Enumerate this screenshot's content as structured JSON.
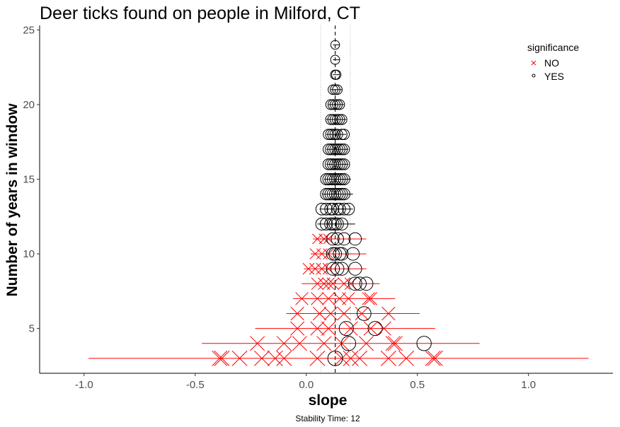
{
  "chart_data": {
    "type": "scatter",
    "title": "Deer ticks found on people in Milford, CT",
    "xlabel": "slope",
    "ylabel": "Number of years in window",
    "caption": "Stability Time: 12",
    "xlim": [
      -1.2,
      1.38
    ],
    "ylim": [
      2.0,
      25.3
    ],
    "xticks": [
      -1.0,
      -0.5,
      0.0,
      0.5,
      1.0
    ],
    "xtick_labels": [
      "-1.0",
      "-0.5",
      "0.0",
      "0.5",
      "1.0"
    ],
    "yticks": [
      5,
      10,
      15,
      20,
      25
    ],
    "ytick_labels": [
      "5",
      "10",
      "15",
      "20",
      "25"
    ],
    "grid": false,
    "legend": {
      "title": "significance",
      "position": "top-right",
      "entries": [
        {
          "label": "NO",
          "marker": "x",
          "color": "#ff0000"
        },
        {
          "label": "YES",
          "marker": "circle",
          "color": "#000000"
        }
      ]
    },
    "reference_lines": {
      "dashed_vertical_x": 0.13,
      "dotted_vertical_x": [
        0.065,
        0.198
      ]
    },
    "colors": {
      "NO": "#ff0000",
      "YES": "#000000"
    },
    "rows": [
      {
        "window": 3,
        "ci": [
          -0.98,
          1.27
        ],
        "no": [
          -0.39,
          -0.38,
          -0.3,
          -0.2,
          -0.14,
          -0.1,
          0.05,
          0.16,
          0.2,
          0.24,
          0.37,
          0.45,
          0.57,
          0.58
        ],
        "yes": [
          0.13
        ],
        "ci_sig": false
      },
      {
        "window": 4,
        "ci": [
          -0.47,
          0.78
        ],
        "no": [
          -0.22,
          -0.1,
          -0.03,
          0.08,
          0.16,
          0.27,
          0.39,
          0.4
        ],
        "yes": [
          0.19,
          0.53
        ],
        "ci_sig": false
      },
      {
        "window": 5,
        "ci": [
          -0.23,
          0.58
        ],
        "no": [
          -0.04,
          0.05,
          0.1,
          0.2,
          0.29,
          0.35
        ],
        "yes": [
          0.18,
          0.31
        ],
        "ci_sig": false
      },
      {
        "window": 6,
        "ci": [
          -0.09,
          0.51
        ],
        "no": [
          -0.04,
          0.06,
          0.11,
          0.17,
          0.25,
          0.37
        ],
        "yes": [
          0.26
        ],
        "ci_sig": false
      },
      {
        "window": 7,
        "ci": [
          -0.06,
          0.4
        ],
        "no": [
          -0.02,
          0.05,
          0.1,
          0.15,
          0.19,
          0.28,
          0.29
        ],
        "yes": [],
        "ci_sig": false
      },
      {
        "window": 8,
        "ci": [
          -0.02,
          0.33
        ],
        "no": [
          0.05,
          0.08,
          0.1,
          0.12,
          0.17,
          0.2
        ],
        "yes": [
          0.22,
          0.24,
          0.27
        ],
        "ci_sig": false
      },
      {
        "window": 9,
        "ci": [
          -0.01,
          0.27
        ],
        "no": [
          0.01,
          0.04,
          0.07,
          0.1
        ],
        "yes": [
          0.12,
          0.14,
          0.16,
          0.22
        ],
        "ci_sig": false
      },
      {
        "window": 10,
        "ci": [
          0.02,
          0.27
        ],
        "no": [
          0.04,
          0.07,
          0.1
        ],
        "yes": [
          0.12,
          0.13,
          0.15,
          0.16,
          0.21
        ],
        "ci_sig": false
      },
      {
        "window": 11,
        "ci": [
          0.03,
          0.27
        ],
        "no": [
          0.05,
          0.08,
          0.1
        ],
        "yes": [
          0.12,
          0.14,
          0.17,
          0.22
        ],
        "ci_sig": false
      },
      {
        "window": 12,
        "ci": [
          0.05,
          0.22
        ],
        "no": [],
        "yes": [
          0.07,
          0.09,
          0.11,
          0.12,
          0.13,
          0.14,
          0.16
        ],
        "ci_sig": true
      },
      {
        "window": 13,
        "ci": [
          0.06,
          0.21
        ],
        "no": [],
        "yes": [
          0.07,
          0.09,
          0.11,
          0.12,
          0.14,
          0.15,
          0.17,
          0.19
        ],
        "ci_sig": true
      },
      {
        "window": 14,
        "ci": [
          0.07,
          0.21
        ],
        "no": [],
        "yes": [
          0.09,
          0.1,
          0.11,
          0.12,
          0.13,
          0.14,
          0.15,
          0.16,
          0.17
        ],
        "ci_sig": true
      },
      {
        "window": 15,
        "ci": [
          0.08,
          0.2
        ],
        "no": [],
        "yes": [
          0.09,
          0.1,
          0.11,
          0.12,
          0.13,
          0.14,
          0.15,
          0.16,
          0.17
        ],
        "ci_sig": true
      },
      {
        "window": 16,
        "ci": [
          0.09,
          0.19
        ],
        "no": [],
        "yes": [
          0.1,
          0.11,
          0.12,
          0.13,
          0.14,
          0.15,
          0.16,
          0.17
        ],
        "ci_sig": true
      },
      {
        "window": 17,
        "ci": [
          0.09,
          0.19
        ],
        "no": [],
        "yes": [
          0.1,
          0.11,
          0.12,
          0.13,
          0.14,
          0.15,
          0.16,
          0.17
        ],
        "ci_sig": true
      },
      {
        "window": 18,
        "ci": [
          0.09,
          0.18
        ],
        "no": [],
        "yes": [
          0.1,
          0.11,
          0.12,
          0.13,
          0.14,
          0.16,
          0.17
        ],
        "ci_sig": true
      },
      {
        "window": 19,
        "ci": [
          0.09,
          0.18
        ],
        "no": [],
        "yes": [
          0.11,
          0.12,
          0.13,
          0.14,
          0.15,
          0.16
        ],
        "ci_sig": true
      },
      {
        "window": 20,
        "ci": [
          0.1,
          0.17
        ],
        "no": [],
        "yes": [
          0.11,
          0.12,
          0.13,
          0.14,
          0.15
        ],
        "ci_sig": true
      },
      {
        "window": 21,
        "ci": [
          0.11,
          0.16
        ],
        "no": [],
        "yes": [
          0.12,
          0.13,
          0.14
        ],
        "ci_sig": true
      },
      {
        "window": 22,
        "ci": [
          0.12,
          0.15
        ],
        "no": [],
        "yes": [
          0.13,
          0.135
        ],
        "ci_sig": true
      },
      {
        "window": 23,
        "ci": [
          0.12,
          0.15
        ],
        "no": [],
        "yes": [
          0.13
        ],
        "ci_sig": true
      },
      {
        "window": 24,
        "ci": [
          0.12,
          0.15
        ],
        "no": [],
        "yes": [
          0.13
        ],
        "ci_sig": true
      }
    ]
  }
}
